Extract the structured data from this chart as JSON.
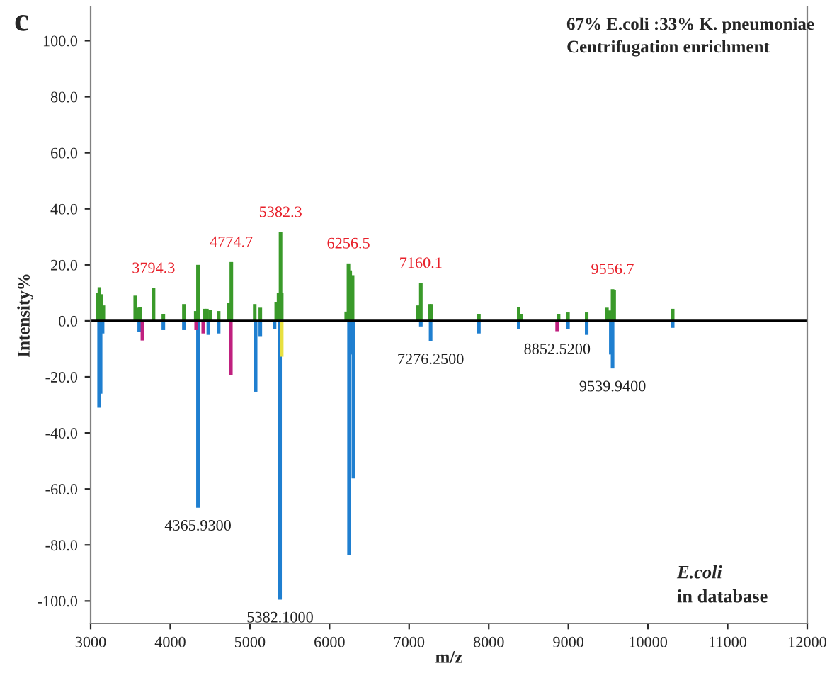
{
  "chart_data": {
    "type": "bar",
    "xlabel": "m/z",
    "ylabel": "Intensity%",
    "xlim": [
      3000,
      12000
    ],
    "xticks": [
      3000,
      4000,
      5000,
      6000,
      7000,
      8000,
      9000,
      10000,
      11000,
      12000
    ],
    "ylim": [
      -108,
      112
    ],
    "yticks": [
      {
        "value": -100,
        "label": "-100.0"
      },
      {
        "value": -80,
        "label": "-80.0"
      },
      {
        "value": -60,
        "label": "-60.0"
      },
      {
        "value": -40,
        "label": "-40.0"
      },
      {
        "value": -20,
        "label": "-20.0"
      },
      {
        "value": 0,
        "label": "0.0"
      },
      {
        "value": 20,
        "label": "20.0"
      },
      {
        "value": 40,
        "label": "40.0"
      },
      {
        "value": 60,
        "label": "60.0"
      },
      {
        "value": 80,
        "label": "80.0"
      },
      {
        "value": 100,
        "label": "100.0"
      }
    ],
    "grid": false,
    "ref_lines": [
      {
        "axis": "y",
        "value": 0,
        "color": "#000000"
      }
    ],
    "series": [
      {
        "color": "#3a9a2a",
        "x": [
          3090,
          3110,
          3135,
          3160,
          3560,
          3590,
          3620,
          3790,
          3913,
          4171,
          4320,
          4348,
          4431,
          4460,
          4500,
          4608,
          4731,
          4767,
          5061,
          5131,
          5331,
          5360,
          5385,
          5400,
          6210,
          6238,
          6260,
          6290,
          7111,
          7147,
          7258,
          7280,
          7876,
          8376,
          8405,
          8877,
          8995,
          9230,
          9484,
          9515,
          9555,
          9575,
          10310
        ],
        "values": [
          10,
          12,
          9.5,
          5.5,
          9,
          4.7,
          5,
          11.7,
          2.5,
          6,
          3.5,
          20,
          4.3,
          4.3,
          3.8,
          3.5,
          6.3,
          21,
          6,
          4.7,
          6.7,
          10,
          31.7,
          10,
          3.3,
          20.5,
          18,
          16.3,
          5.5,
          13.5,
          6,
          6,
          2.5,
          5,
          2.5,
          2.5,
          3,
          3,
          4.7,
          3.7,
          11.3,
          11,
          4.3
        ]
      },
      {
        "color": "#1f7fd0",
        "x": [
          3106,
          3125,
          3150,
          3610,
          3913,
          4171,
          4348,
          4478,
          4608,
          5072,
          5131,
          5310,
          5379,
          6245,
          6262,
          6300,
          7147,
          7270,
          7876,
          8376,
          8995,
          9230,
          9533,
          9555,
          10310
        ],
        "values": [
          -31,
          -26,
          -4.5,
          -4,
          -3.3,
          -3.3,
          -66.7,
          -5,
          -4.5,
          -25.3,
          -5.7,
          -2.8,
          -99.5,
          -83.7,
          -12,
          -56.2,
          -2,
          -7.3,
          -4.5,
          -2.8,
          -2.8,
          -5,
          -12,
          -17,
          -2.5
        ]
      },
      {
        "color": "#c0207f",
        "x": [
          3650,
          4325,
          4414,
          4761,
          8859
        ],
        "values": [
          -7,
          -3.3,
          -4.5,
          -19.5,
          -3.7
        ]
      },
      {
        "color": "#e8e040",
        "x": [
          5400
        ],
        "values": [
          -12.8
        ]
      }
    ],
    "annotations": [
      "c",
      "67% E.coli :33% K. pneumoniae",
      "Centrifugation enrichment",
      "E.coli",
      "in database",
      {
        "text": "3794.3",
        "x": 3790,
        "y": 11.7
      },
      {
        "text": "4774.7",
        "x": 4767,
        "y": 21
      },
      {
        "text": "5382.3",
        "x": 5385,
        "y": 31.7
      },
      {
        "text": "6256.5",
        "x": 6238,
        "y": 20.5
      },
      {
        "text": "7160.1",
        "x": 7147,
        "y": 13.5
      },
      {
        "text": "9556.7",
        "x": 9555,
        "y": 11.3
      },
      {
        "text": "4365.9300",
        "x": 4348,
        "y": -66.7
      },
      {
        "text": "5382.1000",
        "x": 5379,
        "y": -99.5
      },
      {
        "text": "7276.2500",
        "x": 7270,
        "y": -7.3
      },
      {
        "text": "8852.5200",
        "x": 8859,
        "y": -3.7
      },
      {
        "text": "9539.9400",
        "x": 9555,
        "y": -17
      }
    ]
  }
}
